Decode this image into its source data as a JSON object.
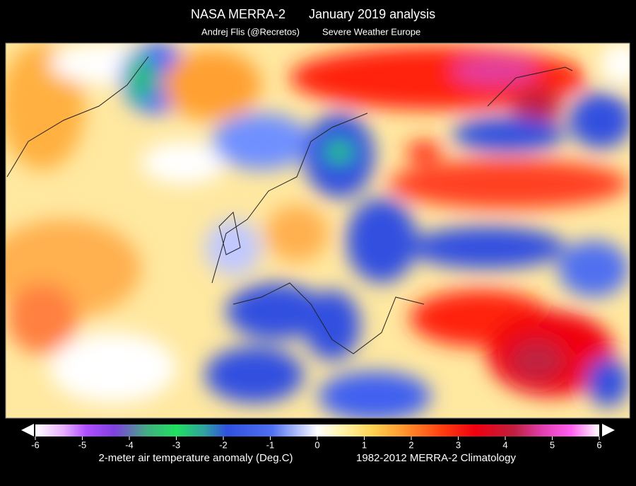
{
  "header": {
    "title": "NASA MERRA-2",
    "period": "January 2019 analysis",
    "author": "Andrej Flis (@Recretos)",
    "source": "Severe Weather Europe"
  },
  "colorbar": {
    "lim": [
      -6,
      6
    ],
    "ticks": [
      -6,
      -5,
      -4,
      -3,
      -2,
      -1,
      0,
      1,
      2,
      3,
      4,
      5,
      6
    ],
    "label": "2-meter air temperature anomaly (Deg.C)",
    "climatology": "1982-2012 MERRA-2 Climatology"
  }
}
